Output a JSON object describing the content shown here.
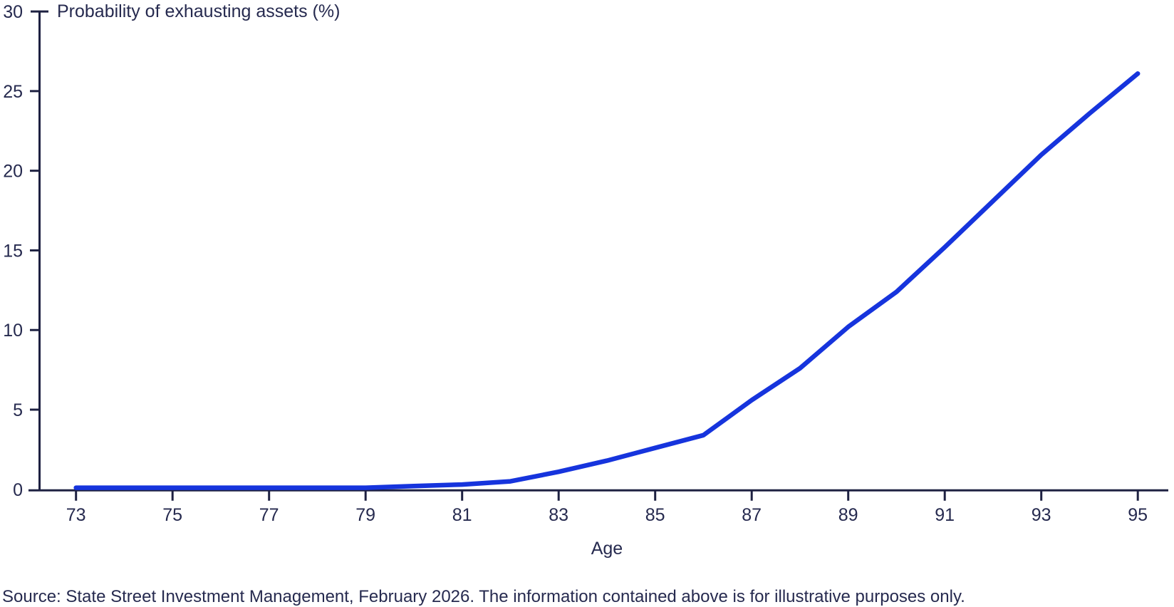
{
  "figure": {
    "axis_title": "Probability of exhausting assets (%)",
    "source_note": "Source: State Street Investment Management, February 2026. The information contained above is for illustrative purposes only.",
    "colors": {
      "line": "#1634dd",
      "axis": "#1e2142",
      "text": "#262a4f",
      "background": "#ffffff"
    }
  },
  "chart_data": {
    "type": "line",
    "title": "Probability of exhausting assets (%)",
    "xlabel": "Age",
    "ylabel": "Probability of exhausting assets (%)",
    "x": [
      73,
      74,
      75,
      76,
      77,
      78,
      79,
      80,
      81,
      82,
      83,
      84,
      85,
      86,
      87,
      88,
      89,
      90,
      91,
      92,
      93,
      94,
      95
    ],
    "y": [
      0.1,
      0.1,
      0.1,
      0.1,
      0.1,
      0.1,
      0.1,
      0.2,
      0.3,
      0.5,
      1.1,
      1.8,
      2.6,
      3.4,
      5.6,
      7.6,
      10.2,
      12.4,
      15.2,
      18.1,
      21.0,
      23.6,
      26.1
    ],
    "x_ticks": [
      73,
      75,
      77,
      79,
      81,
      83,
      85,
      87,
      89,
      91,
      93,
      95
    ],
    "y_ticks": [
      0,
      5,
      10,
      15,
      20,
      25,
      30
    ],
    "xlim": [
      73,
      95
    ],
    "ylim": [
      0,
      30
    ],
    "grid": false,
    "legend": "none",
    "line_width": 6.5
  }
}
